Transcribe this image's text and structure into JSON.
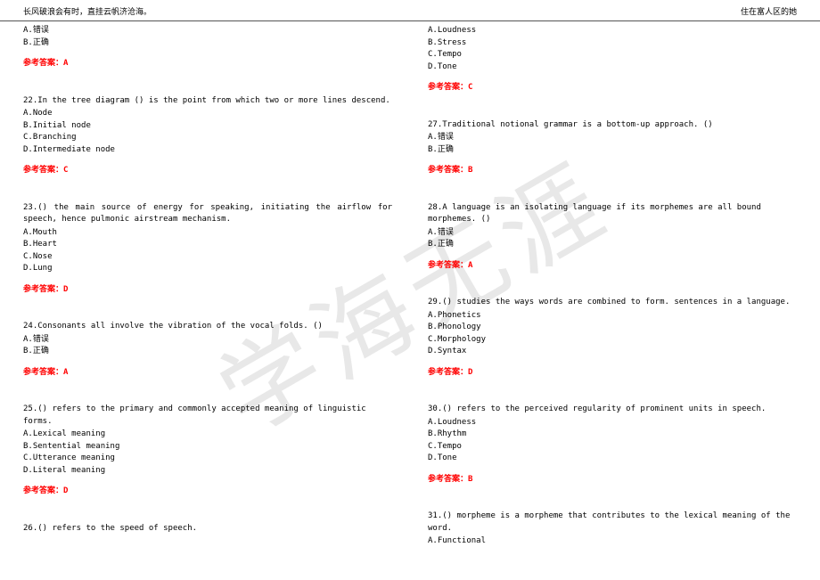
{
  "header": {
    "left": "长风破浪会有时，直挂云帆济沧海。",
    "right": "住在富人区的她"
  },
  "watermark": "学海无涯",
  "leftColumn": {
    "firstBlock": {
      "options": [
        "A.错误",
        "B.正确"
      ],
      "answer": "参考答案：A"
    },
    "q22": {
      "text": "22.In the tree diagram () is the point from which two or more lines descend.",
      "options": [
        "A.Node",
        "B.Initial node",
        "C.Branching",
        "D.Intermediate node"
      ],
      "answer": "参考答案：C"
    },
    "q23": {
      "text": "23.() the main source of energy for speaking, initiating the airflow for speech, hence pulmonic airstream mechanism.",
      "options": [
        "A.Mouth",
        "B.Heart",
        "C.Nose",
        "D.Lung"
      ],
      "answer": "参考答案：D"
    },
    "q24": {
      "text": "24.Consonants all involve the vibration of the vocal folds. ()",
      "options": [
        "A.错误",
        "B.正确"
      ],
      "answer": "参考答案：A"
    },
    "q25": {
      "text": "25.() refers to the primary and commonly accepted meaning of linguistic forms.",
      "options": [
        "A.Lexical meaning",
        "B.Sentential meaning",
        "C.Utterance meaning",
        "D.Literal meaning"
      ],
      "answer": "参考答案：D"
    },
    "q26": {
      "text": "26.() refers to the speed of speech."
    }
  },
  "rightColumn": {
    "firstBlock": {
      "options": [
        "A.Loudness",
        "B.Stress",
        "C.Tempo",
        "D.Tone"
      ],
      "answer": "参考答案：C"
    },
    "q27": {
      "text": "27.Traditional notional grammar is a bottom-up approach. ()",
      "options": [
        "A.错误",
        "B.正确"
      ],
      "answer": "参考答案：B"
    },
    "q28": {
      "text": "28.A language is an isolating language if its morphemes are all bound morphemes. ()",
      "options": [
        "A.错误",
        "B.正确"
      ],
      "answer": "参考答案：A"
    },
    "q29": {
      "text": "29.() studies the ways words are combined to form. sentences in a language.",
      "options": [
        "A.Phonetics",
        "B.Phonology",
        "C.Morphology",
        "D.Syntax"
      ],
      "answer": "参考答案：D"
    },
    "q30": {
      "text": "30.() refers to the perceived regularity of prominent units in speech.",
      "options": [
        "A.Loudness",
        "B.Rhythm",
        "C.Tempo",
        "D.Tone"
      ],
      "answer": "参考答案：B"
    },
    "q31": {
      "text": "31.() morpheme is a morpheme that contributes to the lexical meaning of the word.",
      "options": [
        "A.Functional"
      ]
    }
  }
}
